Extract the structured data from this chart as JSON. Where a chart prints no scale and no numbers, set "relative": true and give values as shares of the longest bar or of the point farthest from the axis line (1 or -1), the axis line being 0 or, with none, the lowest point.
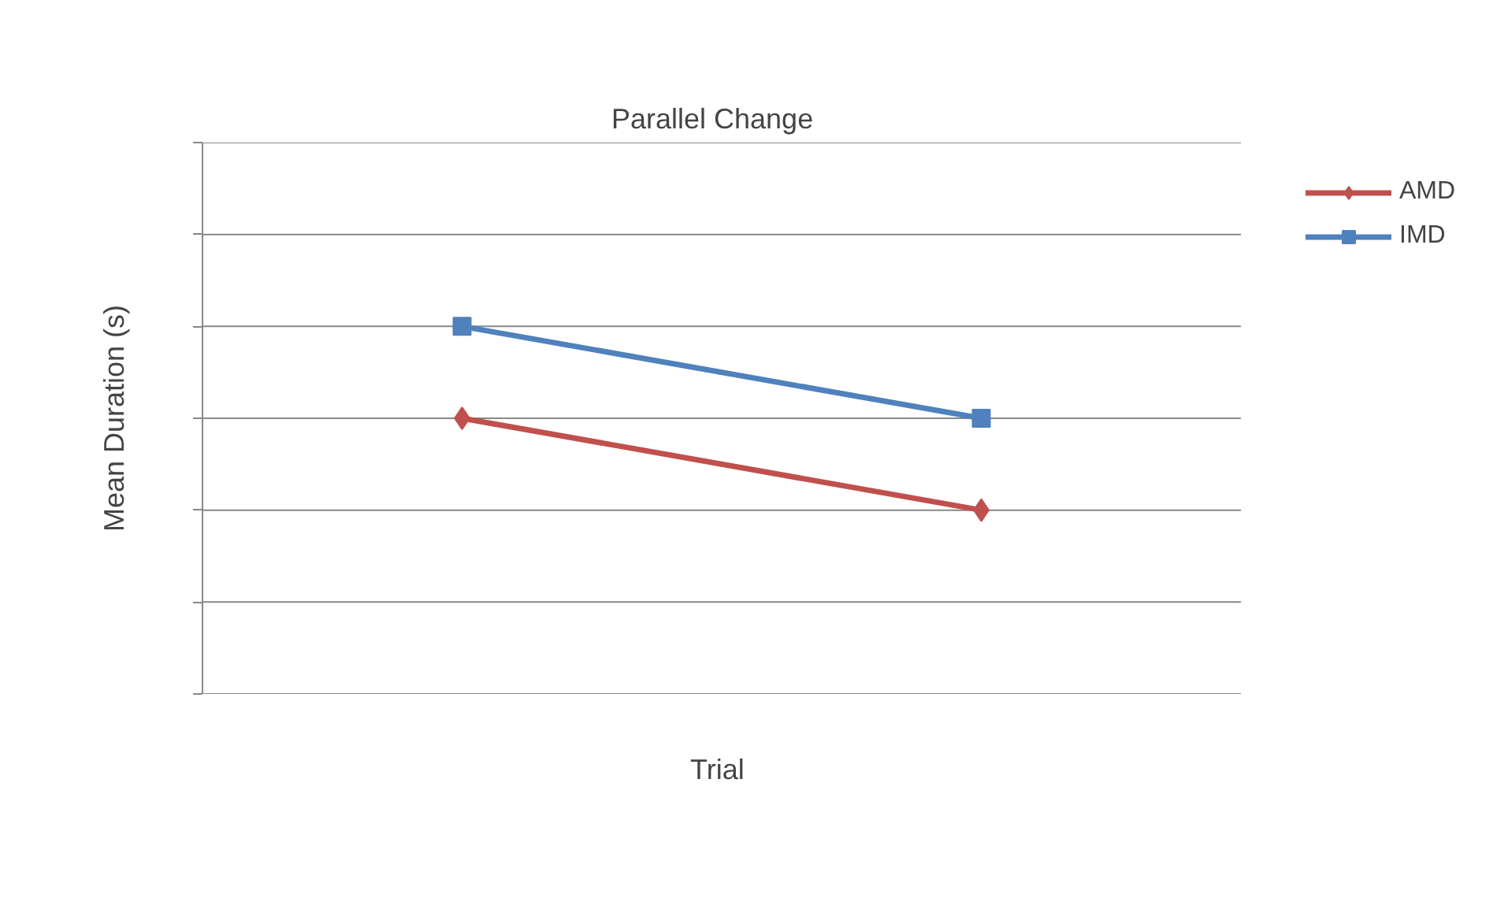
{
  "chart_data": {
    "type": "line",
    "title": "Parallel Change",
    "xlabel": "Trial",
    "ylabel": "Mean Duration (s)",
    "categories": [
      null,
      null
    ],
    "relative": true,
    "grid": "y",
    "legend": "right",
    "line_style": "solid",
    "series": [
      {
        "name": "AMD",
        "color": "#c0504d",
        "marker": "diamond",
        "values": [
          0.75,
          0.5
        ]
      },
      {
        "name": "IMD",
        "color": "#4f81bd",
        "marker": "square",
        "values": [
          1,
          0.75
        ]
      }
    ]
  }
}
